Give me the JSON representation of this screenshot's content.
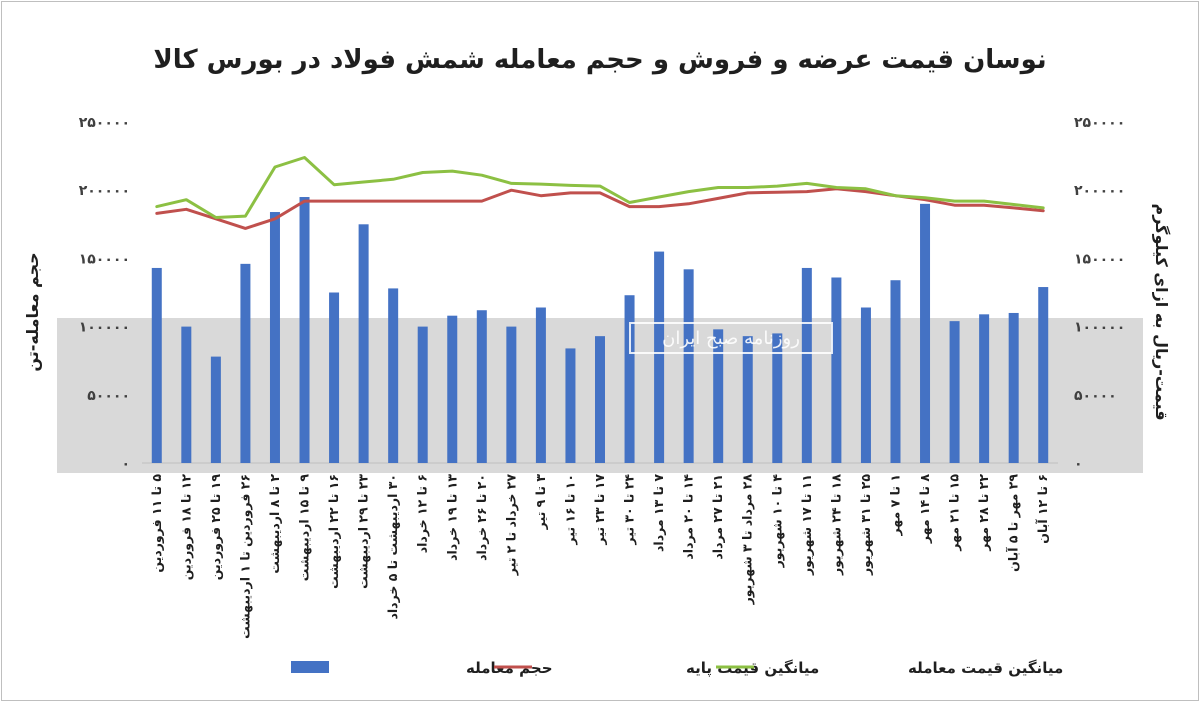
{
  "chart_data": {
    "type": "bar",
    "title": "نوسان قیمت عرضه و فروش و حجم معامله شمش فولاد در بورس کالا",
    "ylabel_left": "حجم معامله-تن",
    "ylabel_right": "قیمت-ریال به ازای کیلوگرم",
    "ylim": [
      0,
      250000
    ],
    "y_ticks": [
      "۰",
      "۵۰۰۰۰",
      "۱۰۰۰۰۰",
      "۱۵۰۰۰۰",
      "۲۰۰۰۰۰",
      "۲۵۰۰۰۰"
    ],
    "y_tick_values": [
      0,
      50000,
      100000,
      150000,
      200000,
      250000
    ],
    "categories": [
      "۵ تا ۱۱ فروردین",
      "۱۲ تا ۱۸ فروردین",
      "۱۹ تا ۲۵ فروردین",
      "۲۶ فروردین تا ۱ اردیبهشت",
      "۲ تا ۸ اردیبهشت",
      "۹ تا ۱۵ اردیبهشت",
      "۱۶ تا ۲۲ اردیبهشت",
      "۲۳ تا ۲۹ اردیبهشت",
      "۳۰ اردیبهشت تا ۵ خرداد",
      "۶ تا ۱۲ خرداد",
      "۱۳ تا ۱۹ خرداد",
      "۲۰ تا ۲۶ خرداد",
      "۲۷ خرداد تا ۲ تیر",
      "۳ تا ۹ تیر",
      "۱۰ تا ۱۶ تیر",
      "۱۷ تا ۲۳ تیر",
      "۲۴ تا ۳۰ تیر",
      "۷ تا ۱۳ مرداد",
      "۱۴ تا ۲۰ مرداد",
      "۲۱ تا ۲۷ مرداد",
      "۲۸ مرداد تا ۳ شهریور",
      "۴ تا ۱۰ شهریور",
      "۱۱ تا ۱۷ شهریور",
      "۱۸ تا ۲۴ شهریور",
      "۲۵ تا ۳۱ شهریور",
      "۱ تا ۷ مهر",
      "۸ تا ۱۴ مهر",
      "۱۵ تا ۲۱ مهر",
      "۲۲ تا ۲۸ مهر",
      "۲۹ مهر تا ۵ آبان",
      "۶ تا ۱۲ آبان"
    ],
    "series": [
      {
        "name": "حجم معامله",
        "kind": "bar",
        "axis": "left",
        "color": "#4472c4",
        "values": [
          143000,
          100000,
          78000,
          146000,
          184000,
          195000,
          125000,
          175000,
          128000,
          100000,
          108000,
          112000,
          100000,
          114000,
          84000,
          93000,
          123000,
          155000,
          142000,
          98000,
          93000,
          95000,
          143000,
          136000,
          114000,
          134000,
          190000,
          104000,
          109000,
          110000,
          129000
        ]
      },
      {
        "name": "میانگین قیمت پایه",
        "kind": "line",
        "axis": "right",
        "color": "#c0504d",
        "values": [
          183000,
          186000,
          179000,
          172000,
          179000,
          192000,
          192000,
          192000,
          192000,
          192000,
          192000,
          192000,
          200000,
          196000,
          198000,
          198000,
          188000,
          188000,
          190000,
          194000,
          198000,
          198500,
          199000,
          201000,
          199000,
          196000,
          193000,
          189000,
          189000,
          187000,
          185000
        ]
      },
      {
        "name": "میانگین قیمت معامله",
        "kind": "line",
        "axis": "right",
        "color": "#8cc043",
        "values": [
          188000,
          193000,
          180000,
          181000,
          217000,
          224000,
          204000,
          206000,
          208000,
          213000,
          214000,
          211000,
          205000,
          204500,
          203500,
          203000,
          191000,
          195000,
          199000,
          202000,
          202000,
          203000,
          205000,
          202000,
          201000,
          196000,
          194500,
          192000,
          192000,
          189500,
          187000
        ]
      }
    ],
    "grid": false,
    "legend_position": "bottom"
  },
  "watermark": {
    "text": "روزنامه صبح ایران"
  }
}
